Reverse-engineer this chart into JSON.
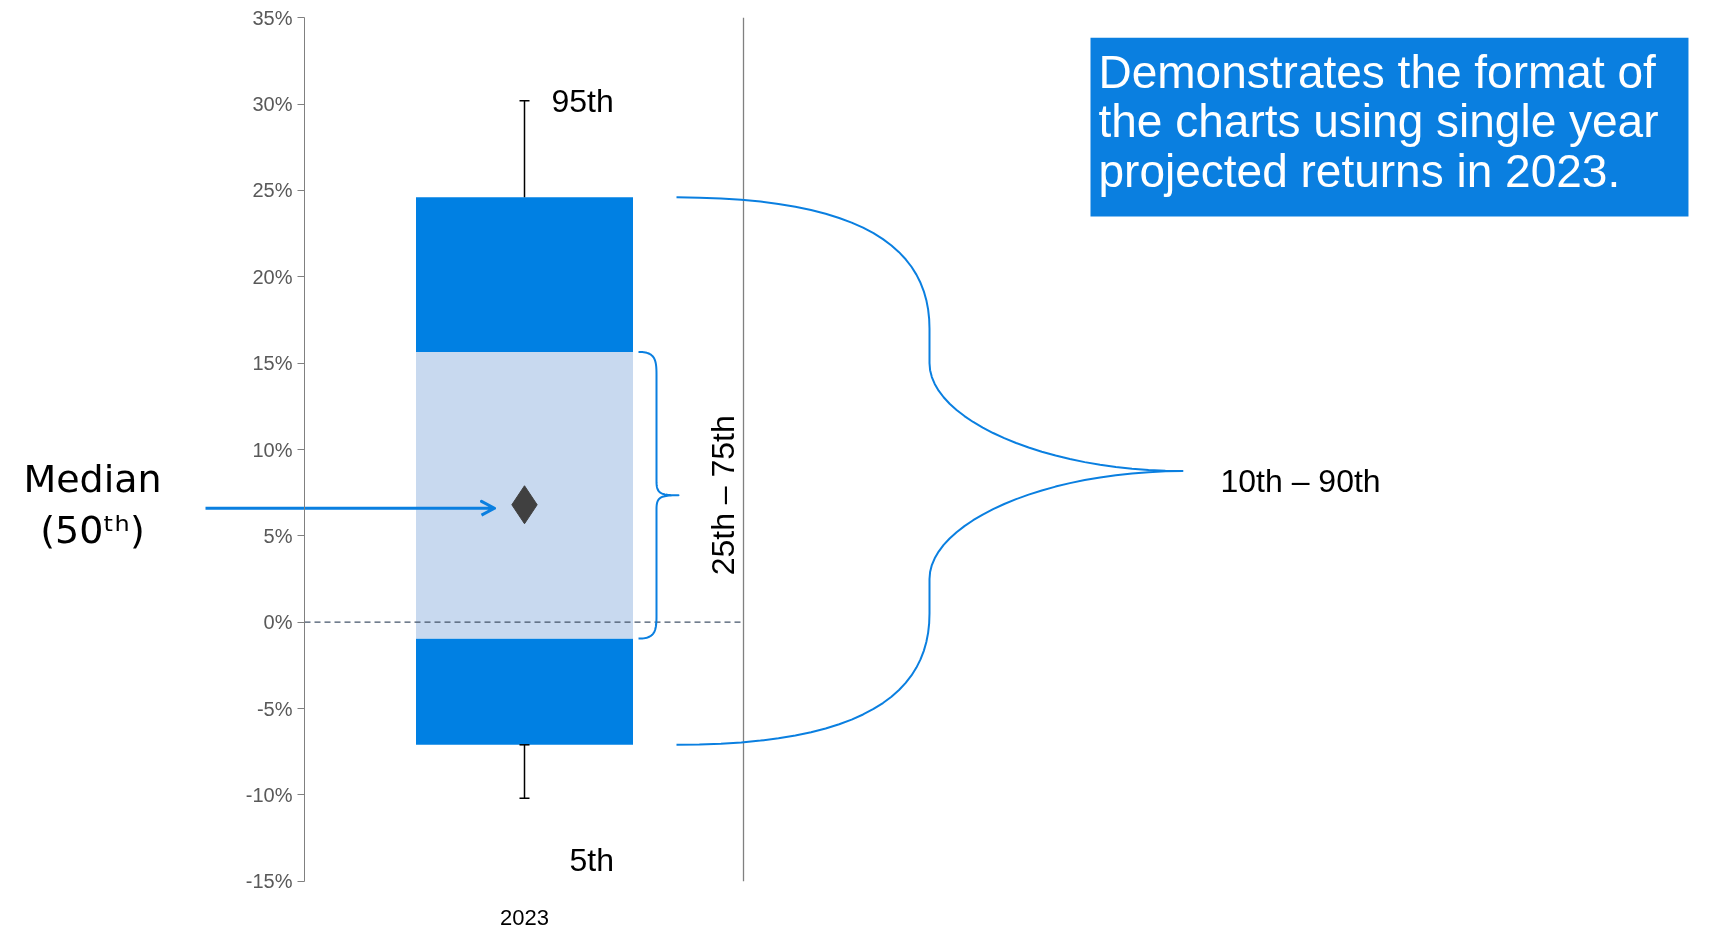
{
  "chart_data": {
    "type": "bar",
    "categories": [
      "2023"
    ],
    "series": [
      {
        "color": "#0080e3",
        "base": [
          -0.95
        ],
        "values": [
          -6.15
        ],
        "errors": [
          [
            -10.2,
            -7.1
          ]
        ]
      },
      {
        "color": "#c8d9ef",
        "base": [
          -0.95
        ],
        "values": [
          16.6
        ]
      },
      {
        "color": "#0080e3",
        "base": [
          15.65
        ],
        "values": [
          8.95
        ],
        "errors": [
          [
            24.6,
            30.2
          ]
        ]
      },
      {
        "type": "scatter",
        "color": "#404040",
        "marker": "diamond",
        "values": [
          6.8
        ]
      }
    ],
    "ylim": [
      -15,
      35
    ],
    "yticks": [
      {
        "value": -15,
        "label": "-15%"
      },
      {
        "value": -10,
        "label": "-10%"
      },
      {
        "value": -5,
        "label": "-5%"
      },
      {
        "value": 0,
        "label": "0%"
      },
      {
        "value": 5,
        "label": "5%"
      },
      {
        "value": 10,
        "label": "10%"
      },
      {
        "value": 15,
        "label": "15%"
      },
      {
        "value": 20,
        "label": "20%"
      },
      {
        "value": 25,
        "label": "25%"
      },
      {
        "value": 30,
        "label": "30%"
      },
      {
        "value": 35,
        "label": "35%"
      }
    ],
    "grid": false,
    "ref_lines": [
      {
        "axis": "y",
        "value": 0,
        "color": "#44546a",
        "line_style": "dashed"
      }
    ],
    "annotations": [
      {
        "text": "95th",
        "x": "2023",
        "y": 30.2
      },
      {
        "text": "5th",
        "x": "2023",
        "y": -10.2
      },
      "Median\n(50ᵗʰ)",
      "25th – 75th",
      "10th – 90th",
      "Demonstrates the format of the charts using single year projected returns in 2023."
    ]
  }
}
